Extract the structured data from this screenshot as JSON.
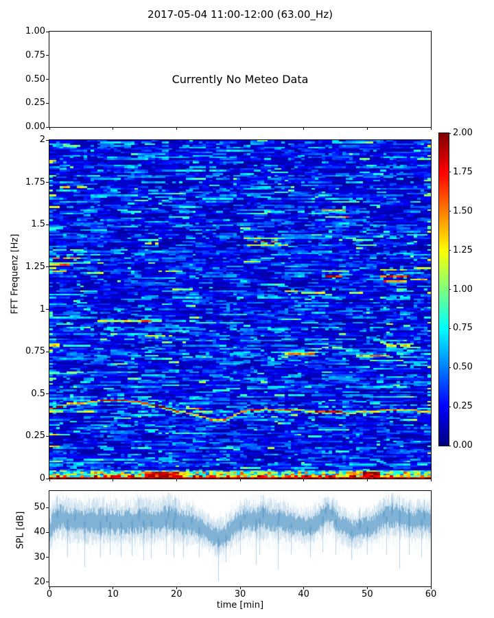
{
  "figure": {
    "title": "2017-05-04 11:00-12:00 (63.00_Hz)",
    "background": "#ffffff",
    "text_color": "#000000"
  },
  "meteo_panel": {
    "message": "Currently No Meteo Data",
    "yticks": [
      "1.00",
      "0.75",
      "0.50",
      "0.25",
      "0.00"
    ]
  },
  "spectrogram_panel": {
    "ylabel": "FFT Frequenz [Hz]",
    "yticks": [
      "2",
      "1.75",
      "1.5",
      "1.25",
      "1",
      "0.75",
      "0.5",
      "0.25",
      "0"
    ],
    "colorbar_ticks": [
      "2.00",
      "1.75",
      "1.50",
      "1.25",
      "1.00",
      "0.75",
      "0.50",
      "0.25",
      "0.00"
    ]
  },
  "spl_panel": {
    "ylabel": "SPL [dB]",
    "xlabel": "time [min]",
    "yticks": [
      "50",
      "40",
      "30",
      "20"
    ],
    "xticks": [
      "0",
      "10",
      "20",
      "30",
      "40",
      "50",
      "60"
    ],
    "line_color": "#1f77b4"
  },
  "chart_data": [
    {
      "type": "empty",
      "panel": "meteo",
      "annotation": "Currently No Meteo Data",
      "xlim": [
        0,
        60
      ],
      "ylim": [
        0,
        1
      ],
      "yticks": [
        1.0,
        0.75,
        0.5,
        0.25,
        0.0
      ]
    },
    {
      "type": "heatmap",
      "panel": "spectrogram",
      "ylabel": "FFT Frequenz [Hz]",
      "xlim": [
        0,
        60
      ],
      "ylim": [
        0,
        2
      ],
      "clim": [
        0,
        2
      ],
      "colormap": "jet",
      "colorbar_tick_values": [
        2.0,
        1.75,
        1.5,
        1.25,
        1.0,
        0.75,
        0.5,
        0.25,
        0.0
      ],
      "ytick_values": [
        2,
        1.75,
        1.5,
        1.25,
        1,
        0.75,
        0.5,
        0.25,
        0
      ],
      "base_noise": {
        "v_min": 0.08,
        "v_span": 0.52,
        "exp": 1.9,
        "cyan_prob": 0.055,
        "cyan_min": 0.55,
        "cyan_span": 0.3,
        "bright_prob": 0.012,
        "bright_min": 0.85,
        "bright_span": 0.25,
        "run_prob": 0.6,
        "edge_col_boost_prob": 0.16
      },
      "features": [
        {
          "f": 1.72,
          "t0": 2,
          "t1": 5.5,
          "v": 1.25
        },
        {
          "f": 1.9,
          "t0": 14,
          "t1": 19,
          "v": 0.72
        },
        {
          "f": 1.9,
          "t0": 53,
          "t1": 56,
          "v": 0.7
        },
        {
          "f": 1.65,
          "t0": 24.5,
          "t1": 28.5,
          "v": 0.72
        },
        {
          "f": 1.59,
          "t0": 43,
          "t1": 46.5,
          "v": 1.35
        },
        {
          "f": 1.57,
          "t0": 41.5,
          "t1": 43.5,
          "v": 0.8
        },
        {
          "f": 1.44,
          "t0": 56.5,
          "t1": 60,
          "v": 0.8
        },
        {
          "f": 1.42,
          "t0": 31,
          "t1": 36.5,
          "v": 1.1
        },
        {
          "f": 1.4,
          "t0": 32.5,
          "t1": 35.5,
          "v": 1.75
        },
        {
          "f": 1.38,
          "t0": 31.5,
          "t1": 37,
          "v": 1.2
        },
        {
          "f": 1.39,
          "t0": 15,
          "t1": 16.8,
          "v": 1.15
        },
        {
          "f": 1.35,
          "t0": 1,
          "t1": 5,
          "v": 0.9
        },
        {
          "f": 1.3,
          "t0": 1,
          "t1": 4.5,
          "v": 1.35
        },
        {
          "f": 1.27,
          "t0": 0,
          "t1": 6,
          "v": 0.95
        },
        {
          "f": 1.32,
          "t0": 3,
          "t1": 8,
          "v": 0.85
        },
        {
          "f": 1.22,
          "t0": 0,
          "t1": 3,
          "v": 1.2
        },
        {
          "f": 1.28,
          "t0": 30.8,
          "t1": 32.8,
          "v": 1.2
        },
        {
          "f": 1.22,
          "t0": 17,
          "t1": 20.5,
          "v": 1.1
        },
        {
          "f": 1.12,
          "t0": 19.5,
          "t1": 23.5,
          "v": 1.05
        },
        {
          "f": 1.2,
          "t0": 43.5,
          "t1": 47,
          "v": 2.0
        },
        {
          "f": 1.22,
          "t0": 43,
          "t1": 47,
          "v": 1.0
        },
        {
          "f": 1.23,
          "t0": 52,
          "t1": 56,
          "v": 1.25
        },
        {
          "f": 1.2,
          "t0": 52,
          "t1": 56.5,
          "v": 1.8
        },
        {
          "f": 1.17,
          "t0": 52.5,
          "t1": 56,
          "v": 1.5
        },
        {
          "f": 1.24,
          "t0": 57.5,
          "t1": 60,
          "v": 1.15
        },
        {
          "f": 1.11,
          "f1": 1.09,
          "t0": 37,
          "t1": 44,
          "v": 1.2
        },
        {
          "f": 1.07,
          "t0": 19.5,
          "t1": 23.5,
          "v": 0.8
        },
        {
          "f": 0.93,
          "t0": 8,
          "t1": 14,
          "v": 1.25
        },
        {
          "f": 0.93,
          "t0": 14,
          "t1": 15.6,
          "v": 1.6
        },
        {
          "f": 0.92,
          "t0": 24,
          "t1": 30,
          "v": 0.8
        },
        {
          "f": 0.97,
          "t0": 27,
          "t1": 31,
          "v": 0.75
        },
        {
          "f": 0.84,
          "t0": 15.2,
          "t1": 18.8,
          "v": 1.1
        },
        {
          "f": 0.79,
          "t0": 0,
          "t1": 1.5,
          "v": 1.35
        },
        {
          "f": 0.78,
          "t0": 42.5,
          "t1": 46,
          "v": 1.05
        },
        {
          "f": 0.785,
          "t0": 53,
          "t1": 56.5,
          "v": 1.45
        },
        {
          "f": 0.8,
          "t0": 53,
          "t1": 57,
          "v": 0.95
        },
        {
          "f": 0.735,
          "t0": 37,
          "t1": 41.5,
          "v": 1.5
        },
        {
          "f": 0.75,
          "t0": 36.8,
          "t1": 42,
          "v": 0.95
        },
        {
          "f": 0.73,
          "t0": 48.5,
          "t1": 53.5,
          "v": 1.45
        },
        {
          "f": 0.72,
          "t0": 21,
          "t1": 25.2,
          "v": 0.85
        },
        {
          "f": 0.62,
          "t0": 0,
          "t1": 4,
          "v": 0.85
        },
        {
          "f": 0.54,
          "t0": 51.8,
          "t1": 56,
          "v": 0.75
        },
        {
          "f": 0.27,
          "t0": 17.5,
          "t1": 25,
          "v": 0.85
        },
        {
          "f": 0.29,
          "t0": 42.5,
          "t1": 47,
          "v": 0.9
        },
        {
          "f": 0.26,
          "t0": 0,
          "t1": 3,
          "v": 0.9
        },
        {
          "f": 0.12,
          "t0": 15,
          "t1": 20.5,
          "v": 0.72
        },
        {
          "f": 0.1,
          "t0": 16,
          "t1": 20,
          "v": 0.68
        },
        {
          "f": 0.165,
          "t0": 43,
          "t1": 47,
          "v": 0.8
        }
      ],
      "band": {
        "path": [
          [
            0,
            0.41
          ],
          [
            3,
            0.44
          ],
          [
            6,
            0.45
          ],
          [
            9,
            0.465
          ],
          [
            12,
            0.46
          ],
          [
            15,
            0.445
          ],
          [
            18,
            0.42
          ],
          [
            20,
            0.4
          ],
          [
            22,
            0.385
          ],
          [
            24,
            0.365
          ],
          [
            26,
            0.345
          ],
          [
            27.5,
            0.345
          ],
          [
            29,
            0.375
          ],
          [
            31,
            0.4
          ],
          [
            34,
            0.41
          ],
          [
            37,
            0.405
          ],
          [
            40,
            0.4
          ],
          [
            43,
            0.395
          ],
          [
            46,
            0.39
          ],
          [
            48,
            0.39
          ],
          [
            50,
            0.395
          ],
          [
            52,
            0.4
          ],
          [
            55,
            0.405
          ],
          [
            58,
            0.4
          ],
          [
            60,
            0.4
          ]
        ],
        "segments": [
          [
            0,
            2,
            1.9
          ],
          [
            2,
            5,
            1.5
          ],
          [
            5,
            8,
            1.35
          ],
          [
            8,
            12,
            1.85
          ],
          [
            12,
            16,
            1.7
          ],
          [
            16,
            20.5,
            1.9
          ],
          [
            20.5,
            25,
            1.3
          ],
          [
            25,
            30,
            1.5
          ],
          [
            30,
            33,
            1.6
          ],
          [
            33,
            36,
            1.3
          ],
          [
            36,
            38.5,
            1.75
          ],
          [
            38.5,
            42,
            1.2
          ],
          [
            42,
            46.5,
            1.85
          ],
          [
            46.5,
            50,
            1.3
          ],
          [
            50,
            52,
            1.2
          ],
          [
            52,
            56,
            1.5
          ],
          [
            56,
            60,
            1.35
          ]
        ]
      },
      "bottom_band": {
        "rows": [
          {
            "f_max": 0.012,
            "v_min": 1.7,
            "v_max": 2.0
          },
          {
            "f_max": 0.024,
            "v_min": 0.6,
            "v_max": 2.0
          },
          {
            "f_max": 0.036,
            "v_min": 0.4,
            "v_max": 1.6
          },
          {
            "f_max": 0.048,
            "v_min": 0.3,
            "v_max": 1.2
          }
        ],
        "blobs": [
          {
            "t0": 15.5,
            "t1": 20,
            "v": 1.8
          },
          {
            "t0": 49.5,
            "t1": 51.5,
            "v": 1.9
          }
        ]
      }
    },
    {
      "type": "line",
      "panel": "spl",
      "xlabel": "time [min]",
      "ylabel": "SPL [dB]",
      "xlim": [
        0,
        60
      ],
      "ylim": [
        18.3,
        56.7
      ],
      "yticks": [
        50,
        40,
        30,
        20
      ],
      "xticks": [
        0,
        10,
        20,
        30,
        40,
        50,
        60
      ],
      "color": "#1f77b4",
      "envelope": [
        [
          0,
          40,
          7
        ],
        [
          0.7,
          45,
          6
        ],
        [
          1.5,
          46.5,
          6
        ],
        [
          3,
          45,
          6
        ],
        [
          5,
          44.5,
          6
        ],
        [
          8,
          44.5,
          6.5
        ],
        [
          11,
          44,
          6
        ],
        [
          14,
          45,
          6.5
        ],
        [
          17,
          44.5,
          6
        ],
        [
          19,
          46,
          6.5
        ],
        [
          21,
          44,
          6
        ],
        [
          22.5,
          43.5,
          5.5
        ],
        [
          24,
          41.5,
          5
        ],
        [
          25.5,
          39,
          5
        ],
        [
          26.6,
          38,
          5.5
        ],
        [
          27.5,
          38.5,
          5
        ],
        [
          29,
          42.5,
          5.5
        ],
        [
          30.5,
          45.5,
          5.5
        ],
        [
          32,
          45,
          5.5
        ],
        [
          33.5,
          46,
          6
        ],
        [
          35,
          45,
          5.5
        ],
        [
          37,
          44.5,
          5.5
        ],
        [
          39,
          43,
          5
        ],
        [
          41,
          42.5,
          5
        ],
        [
          42.5,
          45.5,
          5.5
        ],
        [
          43.5,
          47.5,
          5.5
        ],
        [
          44.5,
          47,
          5.5
        ],
        [
          45.5,
          43.5,
          5
        ],
        [
          47,
          41.5,
          5
        ],
        [
          48,
          40.5,
          5
        ],
        [
          49.5,
          42,
          5
        ],
        [
          51,
          43,
          5
        ],
        [
          52.5,
          46,
          5.5
        ],
        [
          54,
          47,
          6
        ],
        [
          55.5,
          46,
          5.5
        ],
        [
          57,
          44.5,
          5.5
        ],
        [
          58.5,
          45.5,
          5.5
        ],
        [
          60,
          44.5,
          5.5
        ]
      ],
      "spikes": [
        [
          2.8,
          30
        ],
        [
          5.5,
          26
        ],
        [
          8,
          30
        ],
        [
          9.5,
          31
        ],
        [
          11.2,
          30
        ],
        [
          13,
          30.5
        ],
        [
          14.8,
          29
        ],
        [
          16,
          29.5
        ],
        [
          18.3,
          31
        ],
        [
          19.5,
          30
        ],
        [
          21,
          30
        ],
        [
          23.5,
          30
        ],
        [
          26.6,
          20.5
        ],
        [
          27.7,
          28
        ],
        [
          30,
          31
        ],
        [
          32.5,
          27
        ],
        [
          33,
          31
        ],
        [
          35.9,
          25
        ],
        [
          38,
          31
        ],
        [
          41,
          30
        ],
        [
          43,
          32
        ],
        [
          45,
          31
        ],
        [
          47.5,
          29
        ],
        [
          50,
          31
        ],
        [
          53,
          31
        ],
        [
          55,
          25.5
        ],
        [
          56.5,
          31
        ],
        [
          58.5,
          30
        ]
      ],
      "peaks": [
        [
          1.2,
          55
        ],
        [
          4,
          52
        ],
        [
          9,
          52
        ],
        [
          14,
          54
        ],
        [
          18.7,
          56
        ],
        [
          19.8,
          54
        ],
        [
          22.3,
          50
        ],
        [
          30.6,
          52
        ],
        [
          33.6,
          55
        ],
        [
          36,
          52
        ],
        [
          43.4,
          54
        ],
        [
          44.5,
          53
        ],
        [
          48.8,
          50
        ],
        [
          52.5,
          54
        ],
        [
          53.8,
          55.5
        ],
        [
          55,
          54
        ],
        [
          56.5,
          52
        ],
        [
          58.9,
          53
        ]
      ]
    }
  ]
}
